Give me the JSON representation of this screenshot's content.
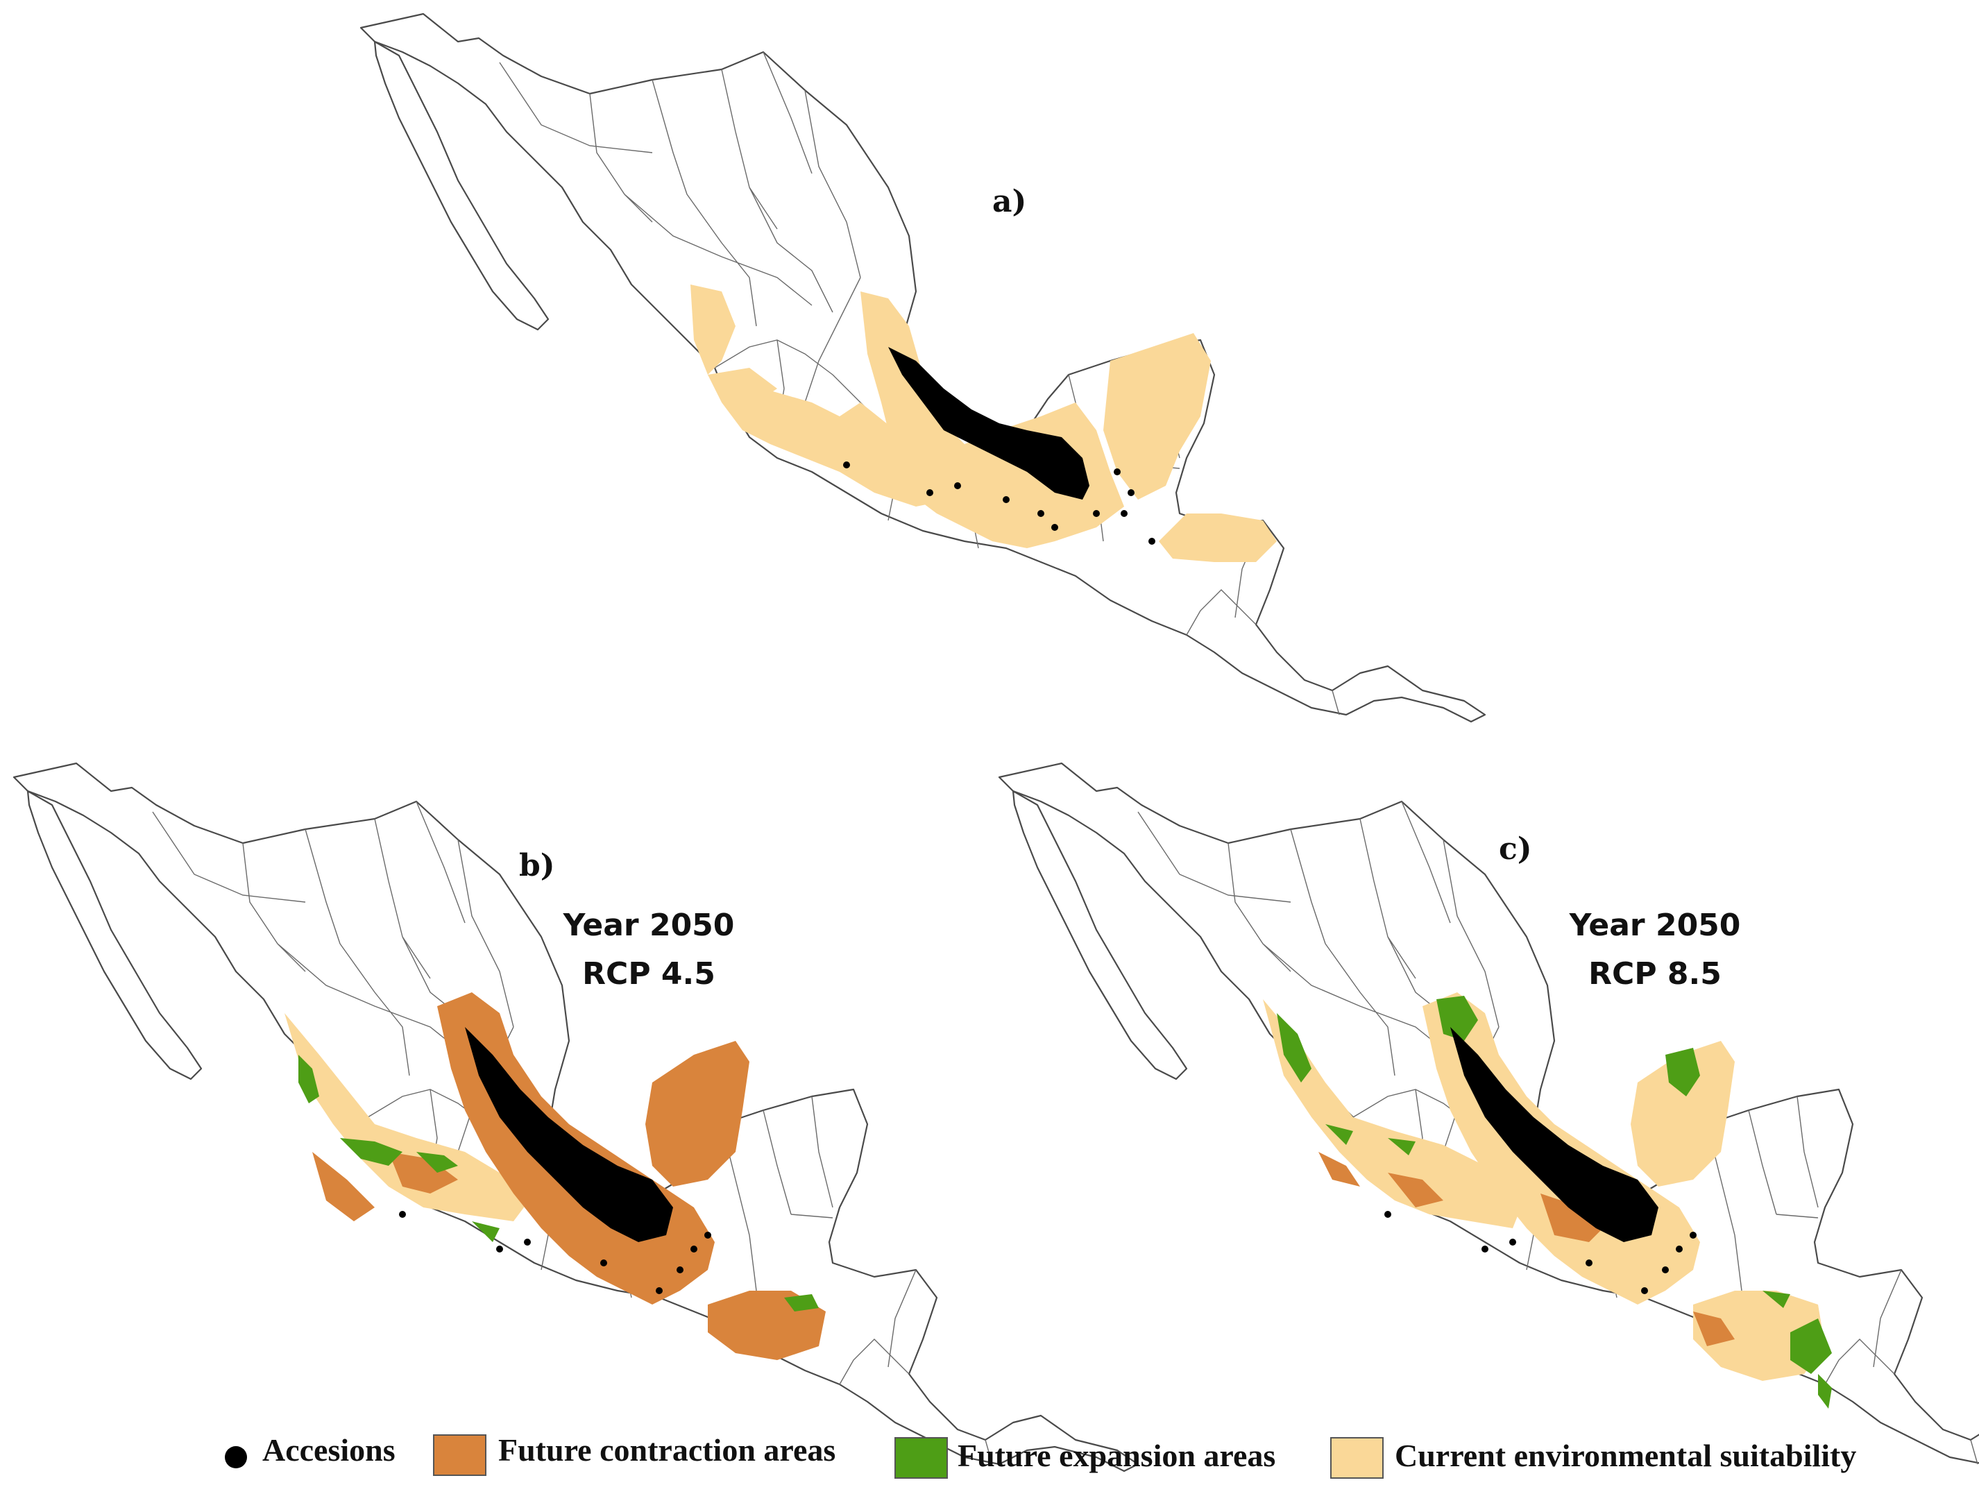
{
  "colors": {
    "accessions": "#000000",
    "future_contraction": "#d9843c",
    "future_expansion": "#4e9e16",
    "current_suitability": "#fad898",
    "map_outline": "#4a4a4a"
  },
  "panels": [
    {
      "label": "a)",
      "scenario_year": "",
      "scenario_rcp": ""
    },
    {
      "label": "b)",
      "scenario_year": "Year 2050",
      "scenario_rcp": "RCP 4.5"
    },
    {
      "label": "c)",
      "scenario_year": "Year 2050",
      "scenario_rcp": "RCP 8.5"
    }
  ],
  "legend": {
    "accessions": "Accesions",
    "contraction": "Future contraction areas",
    "expansion": "Future expansion areas",
    "suitability": "Current environmental suitability"
  }
}
